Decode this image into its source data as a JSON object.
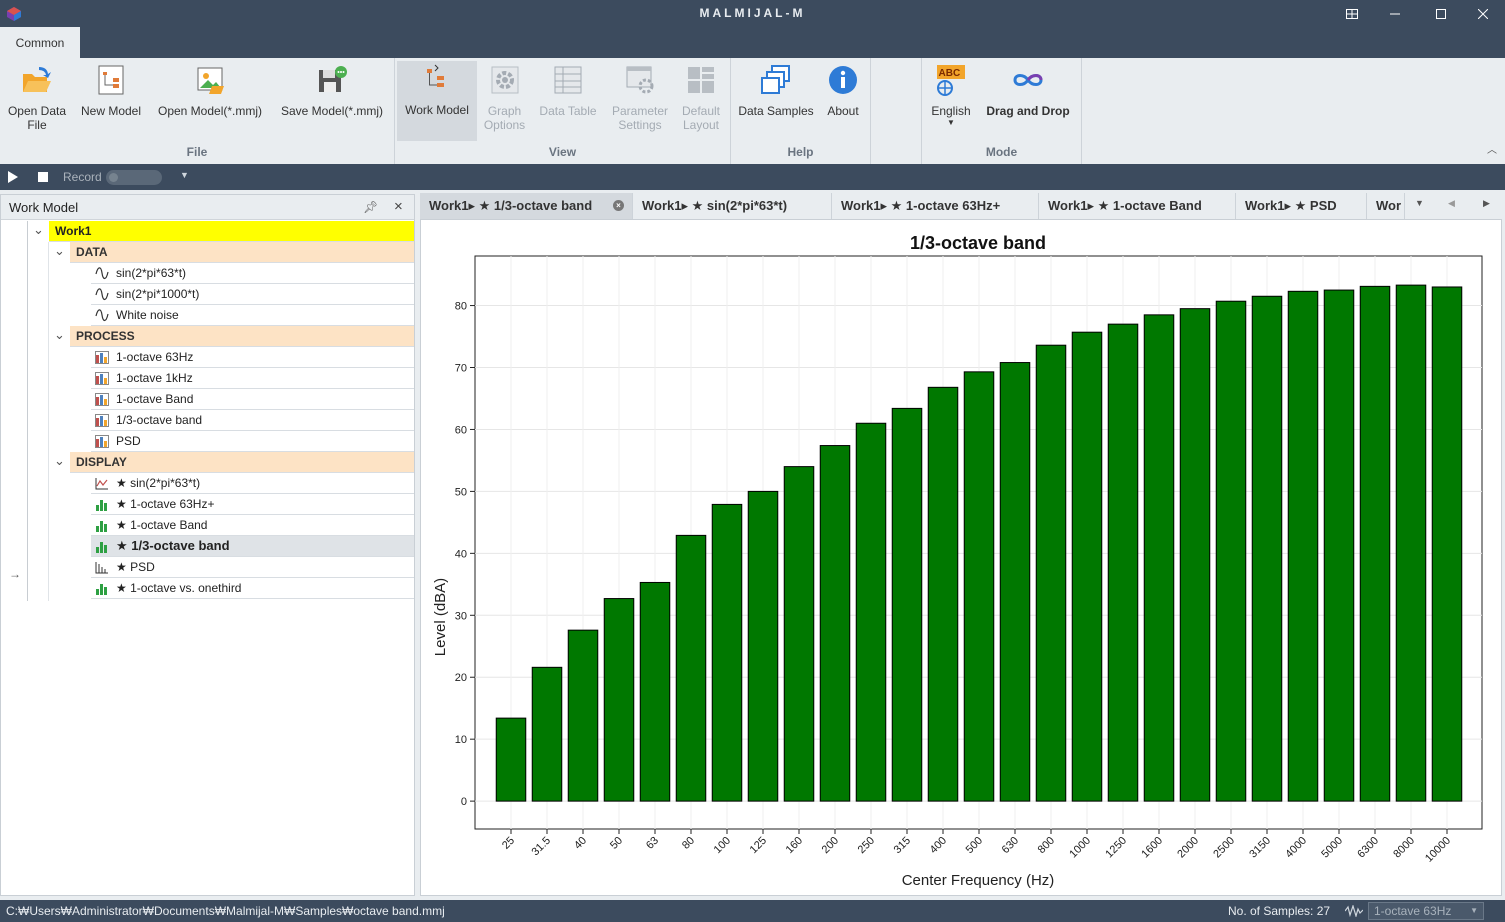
{
  "window": {
    "title": "MALMIJAL-M",
    "controls": [
      "restore-layout",
      "minimize",
      "maximize",
      "close"
    ]
  },
  "ribbon": {
    "tab": "Common",
    "groups": {
      "file": {
        "label": "File",
        "open_data": "Open Data\nFile",
        "new_model": "New Model",
        "open_model": "Open Model(*.mmj)",
        "save_model": "Save Model(*.mmj)"
      },
      "view": {
        "label": "View",
        "work_model": "Work Model",
        "graph_options": "Graph\nOptions",
        "data_table": "Data Table",
        "parameter_settings": "Parameter\nSettings",
        "default_layout": "Default\nLayout"
      },
      "help": {
        "label": "Help",
        "data_samples": "Data Samples",
        "about": "About"
      },
      "mode": {
        "label": "Mode",
        "language": "English",
        "lang_badge": "ABC",
        "drag_drop": "Drag and Drop"
      }
    }
  },
  "toolbar": {
    "record_label": "Record"
  },
  "work_model": {
    "title": "Work Model",
    "root": "Work1",
    "categories": [
      {
        "name": "DATA",
        "items": [
          "sin(2*pi*63*t)",
          "sin(2*pi*1000*t)",
          "White noise"
        ]
      },
      {
        "name": "PROCESS",
        "items": [
          "1-octave 63Hz",
          "1-octave 1kHz",
          "1-octave Band",
          "1/3-octave band",
          "PSD"
        ]
      },
      {
        "name": "DISPLAY",
        "items": [
          "★ sin(2*pi*63*t)",
          "★ 1-octave 63Hz+",
          "★ 1-octave Band",
          "★ 1/3-octave band",
          "★ PSD",
          "★ 1-octave vs. onethird"
        ]
      }
    ],
    "selected": "★ 1/3-octave band"
  },
  "doc_tabs": [
    "Work1▸ ★ 1/3-octave band",
    "Work1▸ ★ sin(2*pi*63*t)",
    "Work1▸ ★ 1-octave 63Hz+",
    "Work1▸ ★ 1-octave Band",
    "Work1▸ ★ PSD",
    "Wor"
  ],
  "chart_data": {
    "type": "bar",
    "title": "1/3-octave band",
    "xlabel": "Center Frequency (Hz)",
    "ylabel": "Level (dBA)",
    "categories": [
      "25",
      "31.5",
      "40",
      "50",
      "63",
      "80",
      "100",
      "125",
      "160",
      "200",
      "250",
      "315",
      "400",
      "500",
      "630",
      "800",
      "1000",
      "1250",
      "1600",
      "2000",
      "2500",
      "3150",
      "4000",
      "5000",
      "6300",
      "8000",
      "10000"
    ],
    "values": [
      13.4,
      21.6,
      27.6,
      32.7,
      35.3,
      42.9,
      47.9,
      50.0,
      54.0,
      57.4,
      61.0,
      63.4,
      66.8,
      69.3,
      70.8,
      73.6,
      75.7,
      77.0,
      78.5,
      79.5,
      80.7,
      81.5,
      82.3,
      82.5,
      83.1,
      83.3,
      83.0
    ],
    "yticks": [
      0,
      10,
      20,
      30,
      40,
      50,
      60,
      70,
      80
    ],
    "ylim": [
      -4.5,
      88
    ],
    "bar_color": "#007800",
    "grid": true
  },
  "status": {
    "path": "C:₩Users₩Administrator₩Documents₩Malmijal-M₩Samples₩octave band.mmj",
    "samples": "No. of Samples: 27",
    "combo": "1-octave 63Hz"
  },
  "colors": {
    "chrome": "#3c4b5e",
    "ribbon_bg": "#e9edf0",
    "root_highlight": "#ffff00",
    "category_bg": "#fde3c5"
  }
}
